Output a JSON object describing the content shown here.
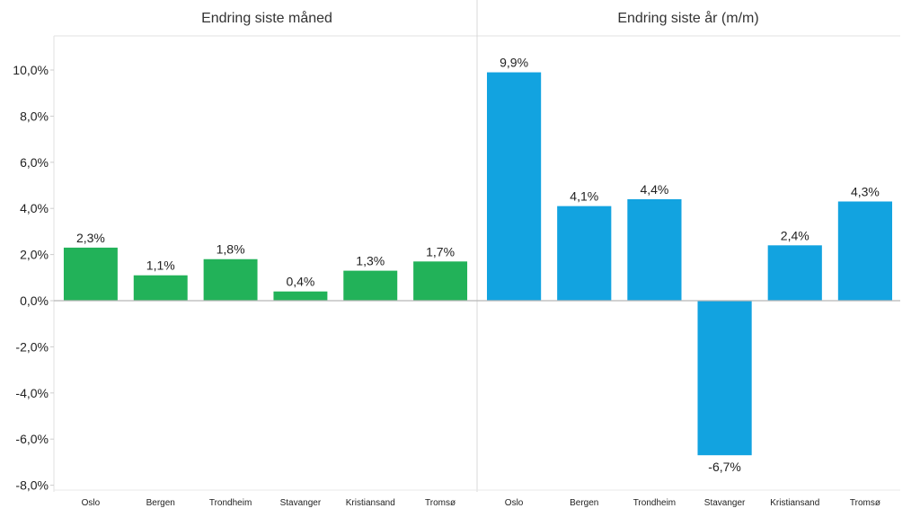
{
  "chart_data": {
    "type": "bar",
    "ylim": [
      -8,
      11
    ],
    "y_ticks": [
      "-8,0%",
      "-6,0%",
      "-4,0%",
      "-2,0%",
      "0,0%",
      "2,0%",
      "4,0%",
      "6,0%",
      "8,0%",
      "10,0%"
    ],
    "y_tick_values": [
      -8,
      -6,
      -4,
      -2,
      0,
      2,
      4,
      6,
      8,
      10
    ],
    "grid": false,
    "panels": [
      {
        "title": "Endring siste måned",
        "color": "#22b259",
        "categories": [
          "Oslo",
          "Bergen",
          "Trondheim",
          "Stavanger",
          "Kristiansand",
          "Tromsø"
        ],
        "values": [
          2.3,
          1.1,
          1.8,
          0.4,
          1.3,
          1.7
        ],
        "labels": [
          "2,3%",
          "1,1%",
          "1,8%",
          "0,4%",
          "1,3%",
          "1,7%"
        ]
      },
      {
        "title": "Endring siste år (m/m)",
        "color": "#12a3e0",
        "categories": [
          "Oslo",
          "Bergen",
          "Trondheim",
          "Stavanger",
          "Kristiansand",
          "Tromsø"
        ],
        "values": [
          9.9,
          4.1,
          4.4,
          -6.7,
          2.4,
          4.3
        ],
        "labels": [
          "9,9%",
          "4,1%",
          "4,4%",
          "-6,7%",
          "2,4%",
          "4,3%"
        ]
      }
    ]
  }
}
